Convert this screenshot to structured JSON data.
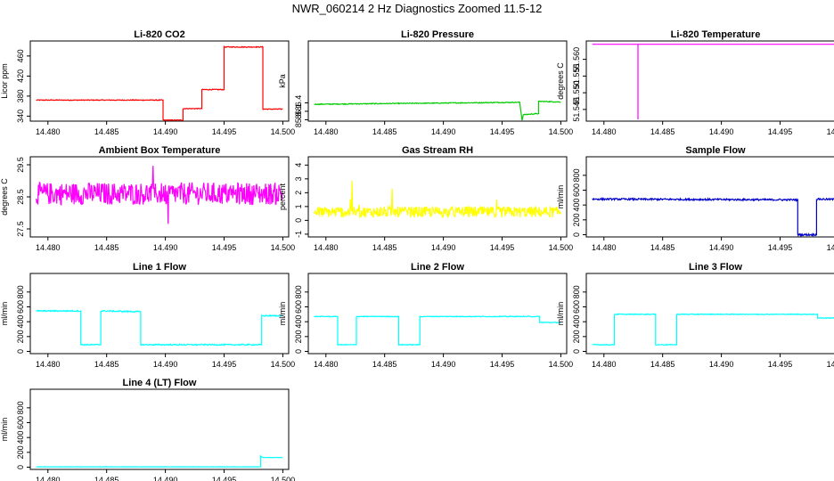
{
  "page_title": "NWR_060214  2 Hz Diagnostics Zoomed 11.5-12",
  "colors": {
    "red": "#ff0000",
    "green": "#00cc00",
    "magenta": "#ff00ff",
    "yellow": "#ffff00",
    "blue": "#0000cc",
    "cyan": "#00ffff"
  },
  "x_tick_labels": [
    "14.480",
    "14.485",
    "14.490",
    "14.495",
    "14.500"
  ],
  "chart_data": [
    {
      "type": "line",
      "title": "Li-820 CO2",
      "ylabel": "Licor ppm",
      "xlim": [
        14.4785,
        14.5005
      ],
      "ylim": [
        330,
        490
      ],
      "yticks": [
        340,
        380,
        420,
        460
      ],
      "ytick_labels": [
        "340",
        "380",
        "420",
        "460"
      ],
      "color": "red",
      "noise": 0.8,
      "series": [
        {
          "x": [
            14.479,
            14.4898,
            14.4898,
            14.4915,
            14.4915,
            14.4931,
            14.4931,
            14.495,
            14.495,
            14.4983,
            14.4983,
            14.5
          ],
          "y": [
            372,
            372,
            332,
            332,
            355,
            355,
            393,
            393,
            478,
            478,
            354,
            354
          ]
        }
      ]
    },
    {
      "type": "line",
      "title": "Li-820 Pressure",
      "ylabel": "kPa",
      "xlim": [
        14.4785,
        14.5005
      ],
      "ylim": [
        85.75,
        88.6
      ],
      "yticks": [
        85.8,
        86.1,
        86.4
      ],
      "ytick_labels": [
        "85.8",
        "86.1",
        "86.4"
      ],
      "color": "green",
      "noise": 0.015,
      "series": [
        {
          "x": [
            14.479,
            14.4965,
            14.4965,
            14.4967,
            14.4968,
            14.4981,
            14.4981,
            14.4985,
            14.5
          ],
          "y": [
            86.35,
            86.42,
            86.42,
            85.78,
            85.98,
            86.02,
            86.45,
            86.45,
            86.43
          ]
        }
      ]
    },
    {
      "type": "line",
      "title": "Li-820 Temperature",
      "ylabel": "degrees C",
      "xlim": [
        14.4785,
        14.5005
      ],
      "ylim": [
        51.5415,
        51.5655
      ],
      "yticks": [
        51.545,
        51.55,
        51.555,
        51.56
      ],
      "ytick_labels": [
        "51.545",
        "51.550",
        "51.555",
        "51.560"
      ],
      "color": "magenta",
      "noise": 0,
      "series": [
        {
          "x": [
            14.479,
            14.4829,
            14.4829,
            14.4829,
            14.5
          ],
          "y": [
            51.5645,
            51.5645,
            51.542,
            51.5645,
            51.5645
          ]
        }
      ]
    },
    {
      "type": "line",
      "title": "Ambient Box Temperature",
      "ylabel": "degrees C",
      "xlim": [
        14.4785,
        14.5005
      ],
      "ylim": [
        27.25,
        29.75
      ],
      "yticks": [
        27.5,
        28.5,
        29.5
      ],
      "ytick_labels": [
        "27.5",
        "28.5",
        "29.5"
      ],
      "color": "magenta",
      "noise": 0.35,
      "series": [
        {
          "x": [
            14.479,
            14.5
          ],
          "y": [
            28.6,
            28.6
          ]
        }
      ]
    },
    {
      "type": "line",
      "title": "Gas Stream RH",
      "ylabel": "percent",
      "xlim": [
        14.4785,
        14.5005
      ],
      "ylim": [
        -1.2,
        4.6
      ],
      "yticks": [
        -1,
        0,
        1,
        2,
        3,
        4
      ],
      "ytick_labels": [
        "-1",
        "0",
        "1",
        "2",
        "3",
        "4"
      ],
      "color": "yellow",
      "noise": 0.4,
      "series": [
        {
          "x": [
            14.479,
            14.5
          ],
          "y": [
            0.6,
            0.6
          ]
        }
      ]
    },
    {
      "type": "line",
      "title": "Sample Flow",
      "ylabel": "ml/min",
      "xlim": [
        14.4785,
        14.5005
      ],
      "ylim": [
        -30,
        1050
      ],
      "yticks": [
        0,
        200,
        400,
        600,
        800
      ],
      "ytick_labels": [
        "0",
        "200",
        "400",
        "600",
        "800"
      ],
      "color": "blue",
      "noise": 12,
      "series": [
        {
          "x": [
            14.479,
            14.4965,
            14.4965,
            14.4981,
            14.4981,
            14.5
          ],
          "y": [
            480,
            470,
            0,
            0,
            480,
            475
          ]
        }
      ]
    },
    {
      "type": "line",
      "title": "Line 1 Flow",
      "ylabel": "ml/min",
      "xlim": [
        14.4785,
        14.5005
      ],
      "ylim": [
        -30,
        1050
      ],
      "yticks": [
        0,
        200,
        400,
        600,
        800
      ],
      "ytick_labels": [
        "0",
        "200",
        "400",
        "600",
        "800"
      ],
      "color": "cyan",
      "noise": 8,
      "series": [
        {
          "x": [
            14.479,
            14.4828,
            14.4828,
            14.4845,
            14.4845,
            14.4879,
            14.4879,
            14.4982,
            14.4982,
            14.5
          ],
          "y": [
            545,
            545,
            90,
            90,
            545,
            535,
            90,
            90,
            480,
            480
          ]
        }
      ]
    },
    {
      "type": "line",
      "title": "Line 2 Flow",
      "ylabel": "ml/min",
      "xlim": [
        14.4785,
        14.5005
      ],
      "ylim": [
        -30,
        1050
      ],
      "yticks": [
        0,
        200,
        400,
        600,
        800
      ],
      "ytick_labels": [
        "0",
        "200",
        "400",
        "600",
        "800"
      ],
      "color": "cyan",
      "noise": 5,
      "series": [
        {
          "x": [
            14.479,
            14.481,
            14.481,
            14.4826,
            14.4826,
            14.4862,
            14.4862,
            14.488,
            14.488,
            14.4982,
            14.4982,
            14.5
          ],
          "y": [
            470,
            470,
            90,
            90,
            470,
            470,
            90,
            90,
            470,
            470,
            390,
            390
          ]
        }
      ]
    },
    {
      "type": "line",
      "title": "Line 3 Flow",
      "ylabel": "ml/min",
      "xlim": [
        14.4785,
        14.5005
      ],
      "ylim": [
        -30,
        1050
      ],
      "yticks": [
        0,
        200,
        400,
        600,
        800
      ],
      "ytick_labels": [
        "0",
        "200",
        "400",
        "600",
        "800"
      ],
      "color": "cyan",
      "noise": 5,
      "series": [
        {
          "x": [
            14.479,
            14.4809,
            14.4809,
            14.4844,
            14.4844,
            14.4862,
            14.4862,
            14.4982,
            14.4982,
            14.5
          ],
          "y": [
            90,
            90,
            500,
            500,
            90,
            90,
            500,
            500,
            450,
            450
          ]
        }
      ]
    },
    {
      "type": "line",
      "title": "Line 4 (LT) Flow",
      "ylabel": "ml/min",
      "xlim": [
        14.4785,
        14.5005
      ],
      "ylim": [
        -30,
        1050
      ],
      "yticks": [
        0,
        200,
        400,
        600,
        800
      ],
      "ytick_labels": [
        "0",
        "200",
        "400",
        "600",
        "800"
      ],
      "color": "cyan",
      "noise": 2,
      "series": [
        {
          "x": [
            14.479,
            14.4981,
            14.4981,
            14.4983,
            14.5
          ],
          "y": [
            5,
            5,
            150,
            130,
            130
          ]
        }
      ]
    }
  ]
}
